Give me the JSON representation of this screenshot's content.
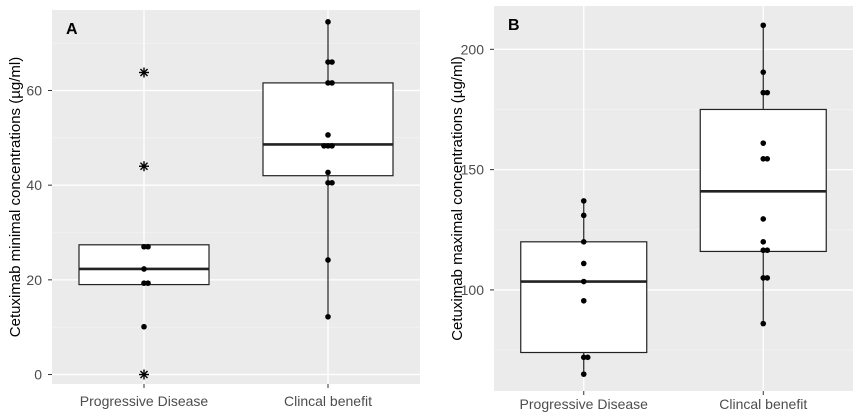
{
  "chart_data": [
    {
      "panel_label": "A",
      "type": "box",
      "ylabel": "Cetuximab minimal concentrations (µg/ml)",
      "categories": [
        "Progressive Disease",
        "Clincal benefit"
      ],
      "ylim": [
        -2,
        77
      ],
      "yticks": [
        0,
        20,
        40,
        60
      ],
      "grid": true,
      "boxes": [
        {
          "category": "Progressive Disease",
          "q1": 19,
          "median": 22.3,
          "q3": 27.4,
          "whisker_low": 19,
          "whisker_high": 27.4
        },
        {
          "category": "Clincal benefit",
          "q1": 42,
          "median": 48.6,
          "q3": 61.6,
          "whisker_low": 12.2,
          "whisker_high": 74.5
        }
      ],
      "points": [
        {
          "category": "Progressive Disease",
          "values": [
            27.0,
            27.0,
            22.3,
            19.3,
            19.3,
            10.1
          ]
        },
        {
          "category": "Clincal benefit",
          "values": [
            74.5,
            66.0,
            66.0,
            61.6,
            61.6,
            50.6,
            48.3,
            48.3,
            48.3,
            42.7,
            40.5,
            40.5,
            24.2,
            12.2
          ]
        }
      ],
      "outliers": [
        {
          "category": "Progressive Disease",
          "values": [
            63.8,
            44.0,
            0.0
          ]
        }
      ]
    },
    {
      "panel_label": "B",
      "type": "box",
      "ylabel": "Cetuximab maximal concentrations (µg/ml)",
      "categories": [
        "Progressive Disease",
        "Clincal benefit"
      ],
      "ylim": [
        58,
        218
      ],
      "yticks": [
        100,
        150,
        200
      ],
      "grid": true,
      "boxes": [
        {
          "category": "Progressive Disease",
          "q1": 74,
          "median": 103.5,
          "q3": 120,
          "whisker_low": 65,
          "whisker_high": 137
        },
        {
          "category": "Clincal benefit",
          "q1": 116,
          "median": 141,
          "q3": 175,
          "whisker_low": 86,
          "whisker_high": 210
        }
      ],
      "points": [
        {
          "category": "Progressive Disease",
          "values": [
            137,
            131,
            120,
            111,
            103.5,
            95.5,
            72,
            72,
            65
          ]
        },
        {
          "category": "Clincal benefit",
          "values": [
            210,
            190.5,
            182,
            182,
            161,
            154.5,
            154.5,
            129.5,
            120,
            116.5,
            116.5,
            105,
            105,
            86
          ]
        }
      ],
      "outliers": []
    }
  ]
}
